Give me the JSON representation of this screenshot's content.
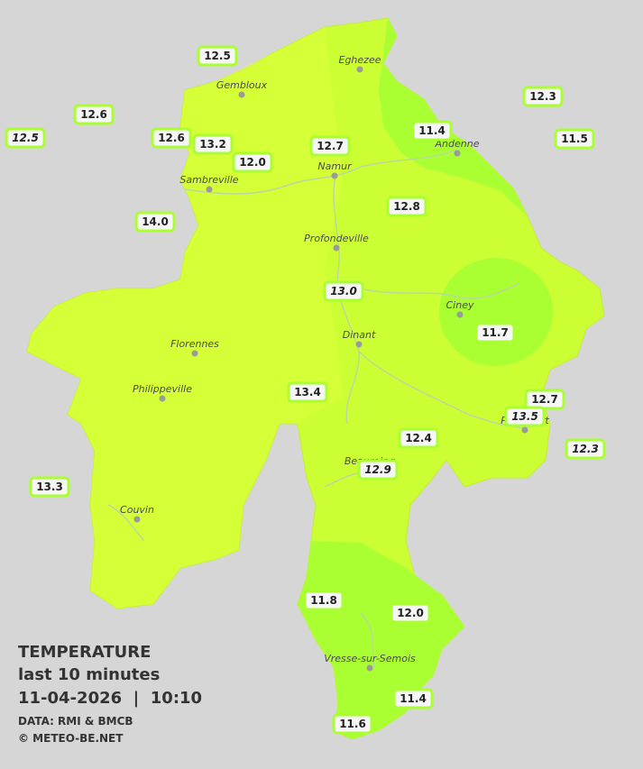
{
  "legend": {
    "title": "TEMPERATURE",
    "subtitle": "last 10 minutes",
    "datetime": "11-04-2026  |  10:10",
    "source": "DATA: RMI & BMCB",
    "copyright": "© METEO-BE.NET"
  },
  "towns": [
    "Eghezee",
    "Gembloux",
    "Andenne",
    "Namur",
    "Sambreville",
    "Profondeville",
    "Ciney",
    "Dinant",
    "Florennes",
    "Philippeville",
    "Rochefort",
    "Beauraing",
    "Couvin",
    "Vresse-sur-Semois"
  ],
  "readings": [
    "12.5",
    "12.6",
    "12.5",
    "12.6",
    "13.2",
    "12.0",
    "12.7",
    "11.4",
    "12.3",
    "11.5",
    "14.0",
    "12.8",
    "13.0",
    "11.7",
    "13.4",
    "12.7",
    "13.5",
    "12.4",
    "12.3",
    "12.9",
    "13.3",
    "11.8",
    "12.0",
    "11.4",
    "11.6"
  ]
}
